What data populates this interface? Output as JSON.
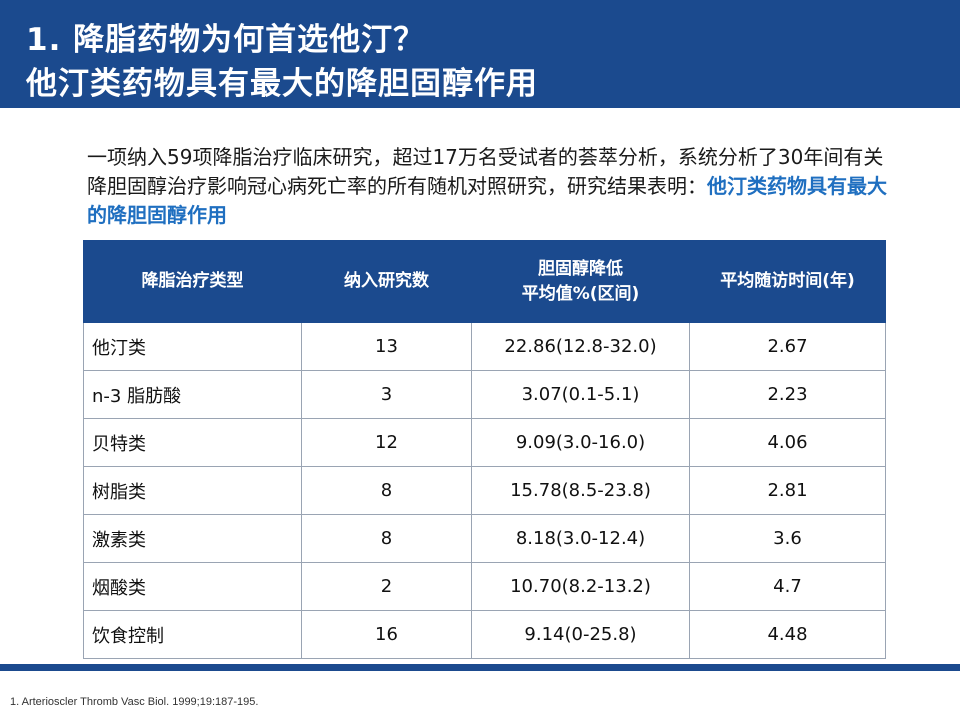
{
  "slide": {
    "title_line1": "1.  降脂药物为何首选他汀？",
    "title_line2": "他汀类药物具有最大的降胆固醇作用"
  },
  "intro": {
    "text": "一项纳入59项降脂治疗临床研究，超过17万名受试者的荟萃分析，系统分析了30年间有关降胆固醇治疗影响冠心病死亡率的所有随机对照研究，研究结果表明：",
    "highlight": "他汀类药物具有最大的降胆固醇作用"
  },
  "table": {
    "headers": {
      "type": "降脂治疗类型",
      "studies": "纳入研究数",
      "reduction_line1": "胆固醇降低",
      "reduction_line2": "平均值%(区间)",
      "followup": "平均随访时间(年)"
    },
    "rows": [
      {
        "type": "他汀类",
        "studies": "13",
        "reduction": "22.86(12.8-32.0)",
        "followup": "2.67"
      },
      {
        "type": "n-3 脂肪酸",
        "studies": "3",
        "reduction": "3.07(0.1-5.1)",
        "followup": "2.23"
      },
      {
        "type": "贝特类",
        "studies": "12",
        "reduction": "9.09(3.0-16.0)",
        "followup": "4.06"
      },
      {
        "type": "树脂类",
        "studies": "8",
        "reduction": "15.78(8.5-23.8)",
        "followup": "2.81"
      },
      {
        "type": "激素类",
        "studies": "8",
        "reduction": "8.18(3.0-12.4)",
        "followup": "3.6"
      },
      {
        "type": "烟酸类",
        "studies": "2",
        "reduction": "10.70(8.2-13.2)",
        "followup": "4.7"
      },
      {
        "type": "饮食控制",
        "studies": "16",
        "reduction": "9.14(0-25.8)",
        "followup": "4.48"
      }
    ]
  },
  "footnote": "1. Arterioscler Thromb Vasc Biol. 1999;19:187-195."
}
